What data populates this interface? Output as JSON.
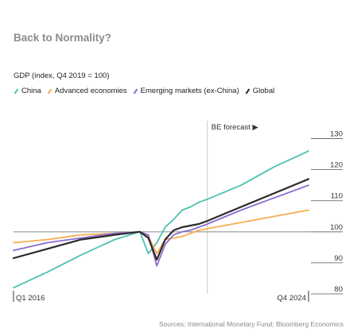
{
  "title": "Back to Normality?",
  "subtitle": "GDP (index, Q4 2019 = 100)",
  "source": "Sources: International Monetary Fund; Bloomberg Economics",
  "forecast_label": "BE forecast",
  "chart_data": {
    "type": "line",
    "ylabel": "GDP (index, Q4 2019 = 100)",
    "ylim": [
      80,
      135
    ],
    "yticks": [
      80,
      90,
      100,
      110,
      120,
      130
    ],
    "x_range": [
      "Q1 2016",
      "Q4 2024"
    ],
    "x_tick_labels": [
      "Q1 2016",
      "Q4 2024"
    ],
    "forecast_start": "Q4 2021",
    "grid": "horizontal line at 100",
    "legend_position": "top",
    "series": [
      {
        "name": "China",
        "color": "#4cc1ad",
        "points": [
          [
            "2016-01-01",
            82
          ],
          [
            "2017-01-01",
            87
          ],
          [
            "2018-01-01",
            92.5
          ],
          [
            "2019-01-01",
            97.5
          ],
          [
            "2019-10-01",
            100
          ],
          [
            "2020-01-01",
            93
          ],
          [
            "2020-04-01",
            96.5
          ],
          [
            "2020-07-01",
            101.5
          ],
          [
            "2020-10-01",
            104
          ],
          [
            "2021-01-01",
            107
          ],
          [
            "2021-04-01",
            108
          ],
          [
            "2021-07-01",
            109.5
          ],
          [
            "2021-10-01",
            110.5
          ],
          [
            "2022-10-01",
            115
          ],
          [
            "2023-10-01",
            121
          ],
          [
            "2024-10-01",
            126
          ]
        ]
      },
      {
        "name": "Advanced economies",
        "color": "#f6ad4f",
        "points": [
          [
            "2016-01-01",
            96.5
          ],
          [
            "2017-01-01",
            97.5
          ],
          [
            "2018-01-01",
            99
          ],
          [
            "2019-01-01",
            99.5
          ],
          [
            "2019-10-01",
            100
          ],
          [
            "2020-01-01",
            98.5
          ],
          [
            "2020-04-01",
            93
          ],
          [
            "2020-07-01",
            97.5
          ],
          [
            "2020-10-01",
            98
          ],
          [
            "2021-01-01",
            98.5
          ],
          [
            "2021-04-01",
            99.5
          ],
          [
            "2021-07-01",
            100.5
          ],
          [
            "2021-10-01",
            101
          ],
          [
            "2022-10-01",
            103
          ],
          [
            "2023-10-01",
            105
          ],
          [
            "2024-10-01",
            107
          ]
        ]
      },
      {
        "name": "Emerging markets (ex-China)",
        "color": "#8a6bd0",
        "points": [
          [
            "2016-01-01",
            94
          ],
          [
            "2017-01-01",
            96.5
          ],
          [
            "2018-01-01",
            98
          ],
          [
            "2019-01-01",
            99.5
          ],
          [
            "2019-10-01",
            100
          ],
          [
            "2020-01-01",
            99
          ],
          [
            "2020-04-01",
            89
          ],
          [
            "2020-07-01",
            96
          ],
          [
            "2020-10-01",
            99
          ],
          [
            "2021-01-01",
            100
          ],
          [
            "2021-04-01",
            100.5
          ],
          [
            "2021-07-01",
            101.5
          ],
          [
            "2021-10-01",
            102.5
          ],
          [
            "2022-10-01",
            107
          ],
          [
            "2023-10-01",
            111
          ],
          [
            "2024-10-01",
            115
          ]
        ]
      },
      {
        "name": "Global",
        "color": "#2a2a2a",
        "points": [
          [
            "2016-01-01",
            91.5
          ],
          [
            "2017-01-01",
            94.5
          ],
          [
            "2018-01-01",
            97.5
          ],
          [
            "2019-01-01",
            99
          ],
          [
            "2019-10-01",
            100
          ],
          [
            "2020-01-01",
            98
          ],
          [
            "2020-04-01",
            91
          ],
          [
            "2020-07-01",
            97.5
          ],
          [
            "2020-10-01",
            100.5
          ],
          [
            "2021-01-01",
            101.5
          ],
          [
            "2021-04-01",
            102
          ],
          [
            "2021-07-01",
            102.5
          ],
          [
            "2021-10-01",
            103.5
          ],
          [
            "2022-10-01",
            108
          ],
          [
            "2023-10-01",
            112.5
          ],
          [
            "2024-10-01",
            117
          ]
        ]
      }
    ]
  }
}
